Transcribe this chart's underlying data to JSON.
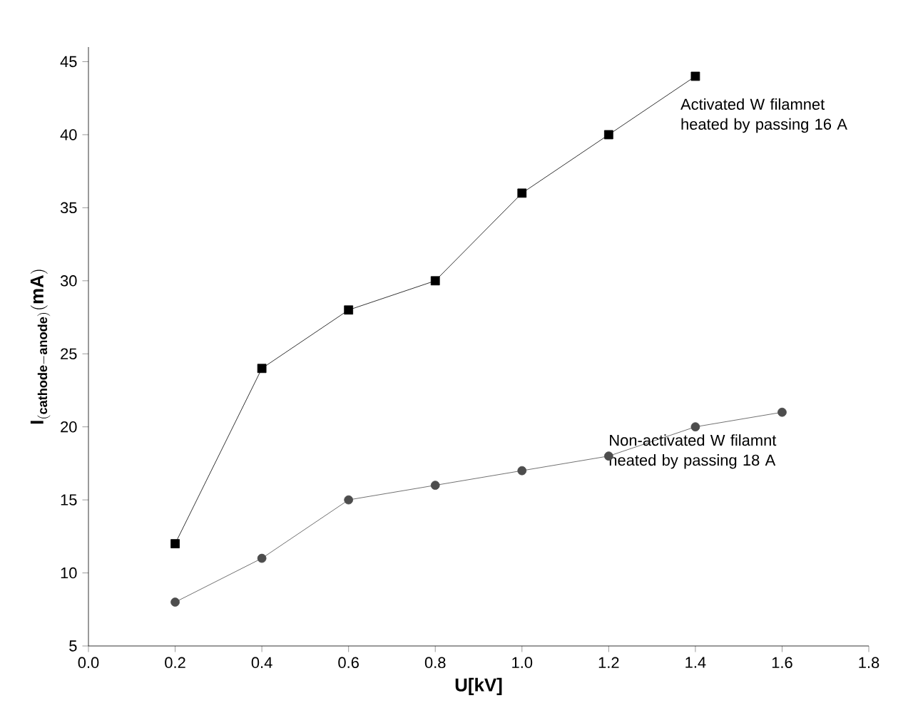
{
  "chart_data": {
    "type": "line",
    "xlabel": "U[kV]",
    "ylabel": "\\mathbf{I}_{\\mathbf{(cathode-anode)}}\\mathbf{(mA)}",
    "xlim": [
      0,
      1.8
    ],
    "xticks": [
      {
        "value": 0,
        "label": "0.0"
      },
      {
        "value": 0.2,
        "label": "0.2"
      },
      {
        "value": 0.4,
        "label": "0.4"
      },
      {
        "value": 0.6,
        "label": "0.6"
      },
      {
        "value": 0.8,
        "label": "0.8"
      },
      {
        "value": 1.0,
        "label": "1.0"
      },
      {
        "value": 1.2,
        "label": "1.2"
      },
      {
        "value": 1.4,
        "label": "1.4"
      },
      {
        "value": 1.6,
        "label": "1.6"
      },
      {
        "value": 1.8,
        "label": "1.8"
      }
    ],
    "ylim": [
      5,
      46
    ],
    "yticks": [
      5,
      10,
      15,
      20,
      25,
      30,
      35,
      40,
      45
    ],
    "grid": false,
    "series": [
      {
        "name": "Activated W filamnet heated by passing 16 A",
        "color": "#000000",
        "marker": "square",
        "x": [
          0.2,
          0.4,
          0.6,
          0.8,
          1.0,
          1.2,
          1.4
        ],
        "values": [
          12,
          24,
          28,
          30,
          36,
          40,
          44
        ]
      },
      {
        "name": "Non-activated W filamnt heated by passing 18 A",
        "color": "#4d4d4d",
        "marker": "circle",
        "x": [
          0.2,
          0.4,
          0.6,
          0.8,
          1.0,
          1.2,
          1.4,
          1.6
        ],
        "values": [
          8,
          11,
          15,
          16,
          17,
          18,
          20,
          21
        ]
      }
    ]
  }
}
